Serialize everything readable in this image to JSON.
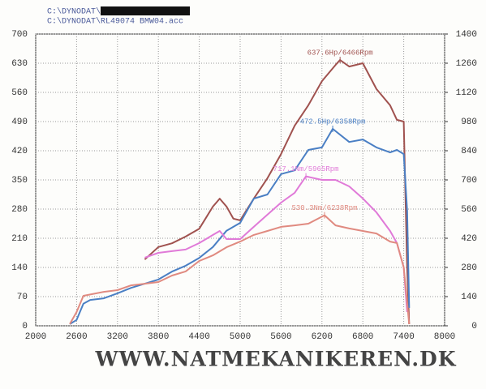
{
  "chart_data": {
    "type": "line",
    "header": [
      "C:\\DYNODAT\\",
      "C:\\DYNODAT\\RL49074 BMW04.acc"
    ],
    "watermark": "WWW.NATMEKANIKEREN.DK",
    "xlim": [
      2000,
      8000
    ],
    "xticks": [
      2000,
      2600,
      3200,
      3800,
      4400,
      5000,
      5600,
      6200,
      6800,
      7400,
      8000
    ],
    "ylim": [
      0,
      700
    ],
    "yticks": [
      0,
      70,
      140,
      210,
      280,
      350,
      420,
      490,
      560,
      630,
      700
    ],
    "y2lim": [
      0,
      1400
    ],
    "y2ticks": [
      0,
      140,
      280,
      420,
      560,
      700,
      840,
      980,
      1120,
      1260,
      1400
    ],
    "grid": true,
    "series": [
      {
        "color": "#a0524f",
        "annotation": "637.6Hp/6466Rpm",
        "x": [
          3600,
          3800,
          4000,
          4200,
          4400,
          4600,
          4700,
          4800,
          4900,
          5000,
          5200,
          5400,
          5600,
          5800,
          6000,
          6200,
          6400,
          6466,
          6600,
          6800,
          7000,
          7200,
          7300,
          7400,
          7450,
          7480
        ],
        "values": [
          159,
          189,
          198,
          214,
          233,
          286,
          305,
          286,
          257,
          253,
          305,
          354,
          412,
          480,
          529,
          587,
          626,
          637.6,
          622,
          630,
          568,
          529,
          494,
          490,
          140,
          4
        ]
      },
      {
        "color": "#4a7fc4",
        "annotation": "472.5Hp/6358Rpm",
        "x": [
          2500,
          2600,
          2700,
          2800,
          3000,
          3200,
          3400,
          3600,
          3800,
          4000,
          4200,
          4400,
          4600,
          4800,
          5000,
          5200,
          5400,
          5600,
          5800,
          6000,
          6200,
          6358,
          6600,
          6800,
          7000,
          7200,
          7300,
          7400,
          7450,
          7480
        ],
        "values": [
          4,
          14,
          53,
          62,
          66,
          78,
          91,
          101,
          111,
          130,
          144,
          163,
          189,
          228,
          247,
          305,
          315,
          364,
          373,
          422,
          428,
          472.5,
          441,
          447,
          428,
          416,
          422,
          412,
          276,
          43
        ]
      },
      {
        "color": "#e07ad8",
        "axis": "y2",
        "annotation": "717.1Nm/5965Rpm",
        "x": [
          3600,
          3800,
          4000,
          4200,
          4400,
          4600,
          4700,
          4800,
          5000,
          5200,
          5400,
          5600,
          5800,
          5965,
          6200,
          6400,
          6600,
          6800,
          7000,
          7200,
          7300,
          7400,
          7450
        ],
        "values": [
          327,
          350,
          358,
          366,
          397,
          436,
          455,
          416,
          416,
          475,
          533,
          591,
          638,
          717.1,
          700,
          700,
          669,
          611,
          544,
          455,
          397,
          280,
          66
        ]
      },
      {
        "color": "#e08a80",
        "axis": "y2",
        "annotation": "530.3Nm/6238Rpm",
        "x": [
          2500,
          2600,
          2700,
          3000,
          3200,
          3400,
          3600,
          3800,
          4000,
          4200,
          4400,
          4600,
          4800,
          5000,
          5200,
          5400,
          5600,
          5800,
          6000,
          6238,
          6400,
          6600,
          6800,
          7000,
          7200,
          7300,
          7400,
          7480
        ],
        "values": [
          8,
          66,
          144,
          163,
          171,
          194,
          202,
          210,
          241,
          261,
          311,
          338,
          377,
          404,
          436,
          455,
          475,
          482,
          490,
          530.3,
          482,
          467,
          455,
          443,
          404,
          397,
          280,
          8
        ]
      }
    ]
  }
}
